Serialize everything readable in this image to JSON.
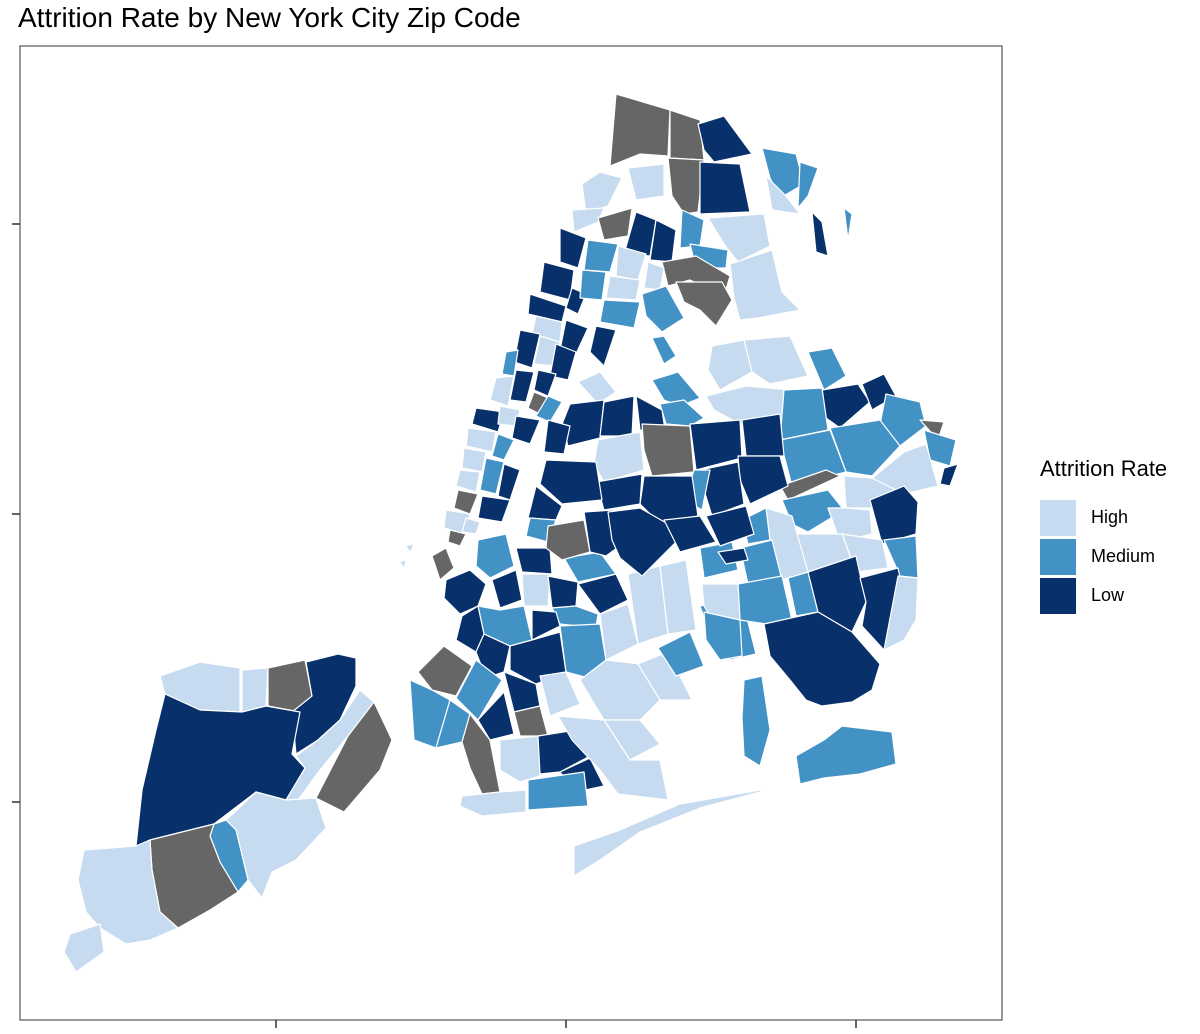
{
  "title": "Attrition Rate by New York City Zip Code",
  "legend": {
    "title": "Attrition Rate",
    "items": [
      {
        "label": "High",
        "color": "#c6dbef"
      },
      {
        "label": "Medium",
        "color": "#4292c6"
      },
      {
        "label": "Low",
        "color": "#08306b"
      }
    ]
  },
  "colors": {
    "no_data": "#666666",
    "boundary": "#ffffff",
    "axis": "#000000",
    "background": "#ffffff"
  }
}
